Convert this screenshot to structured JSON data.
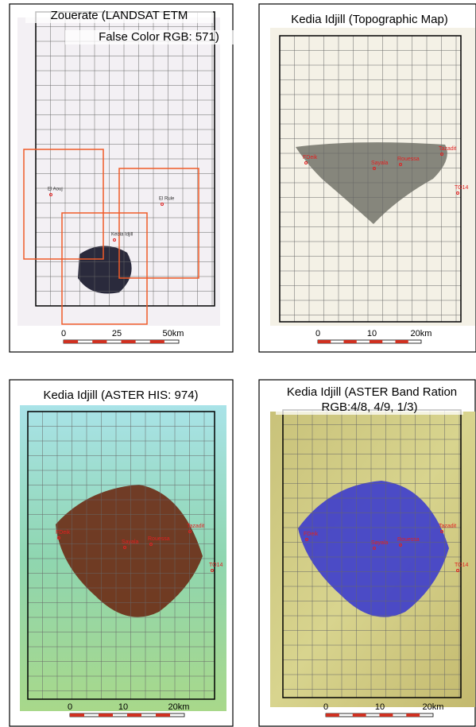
{
  "panels": [
    {
      "title": [
        "Zouerate (LANDSAT ETM",
        "False Color RGB: 571)"
      ],
      "labels": [
        "El Aouj",
        "El Rule",
        "Kedia Idjill"
      ],
      "scale": [
        "0",
        "25",
        "50km"
      ]
    },
    {
      "title": [
        "Kedia Idjill (Topographic Map)"
      ],
      "labels": [
        "FDeik",
        "Sayala",
        "Rouessa",
        "Tazadit",
        "TO14"
      ],
      "scale": [
        "0",
        "10",
        "20km"
      ]
    },
    {
      "title": [
        "Kedia Idjill (ASTER HIS: 974)"
      ],
      "labels": [
        "FDeik",
        "Sayala",
        "Rouessa",
        "Tazadit",
        "TO14"
      ],
      "scale": [
        "0",
        "10",
        "20km"
      ]
    },
    {
      "title": [
        "Kedia Idjill (ASTER Band Ration",
        "RGB:4/8, 4/9, 1/3)"
      ],
      "labels": [
        "FDeik",
        "Sayala",
        "Rouessa",
        "Tazadit",
        "TO14"
      ],
      "scale": [
        "0",
        "10",
        "20km"
      ]
    }
  ]
}
